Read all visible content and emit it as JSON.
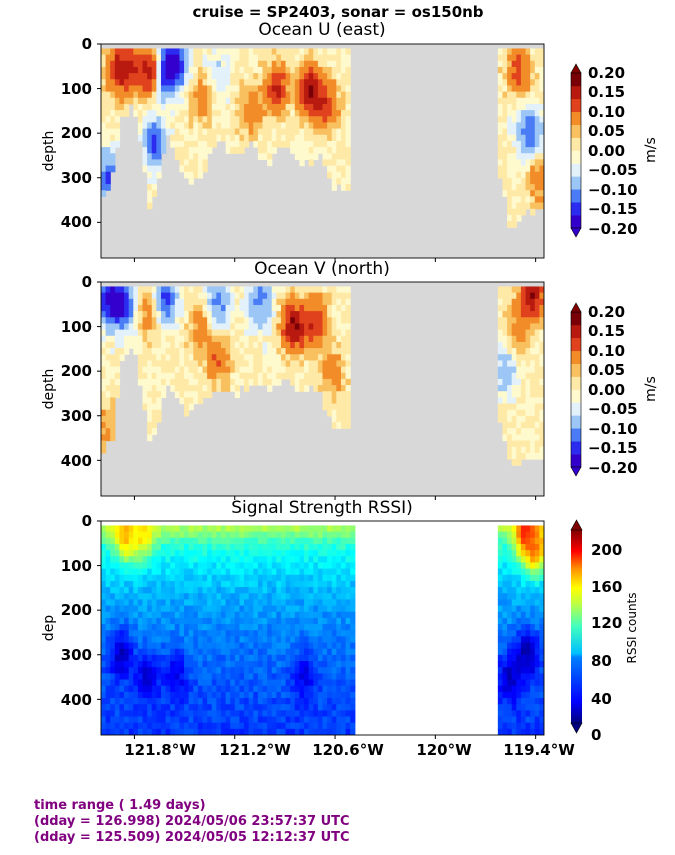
{
  "figure_title": "cruise = SP2403,  sonar = os150nb",
  "footer": {
    "line1": "time range ( 1.49 days)",
    "line2": "(dday = 126.998) 2024/05/06 23:57:37 UTC",
    "line3": "(dday = 125.509) 2024/05/05 12:12:37 UTC"
  },
  "x_ticks": [
    "121.8°W",
    "121.2°W",
    "120.6°W",
    "120°W",
    "119.4°W"
  ],
  "x_tick_values": [
    -121.8,
    -121.2,
    -120.6,
    -120.0,
    -119.4
  ],
  "colors": {
    "nodata_gray": "#d8d8d8",
    "footer_text": "#800080",
    "velocity_levels": [
      "#3300cc",
      "#2c2cf0",
      "#4a7cf5",
      "#9cc6f5",
      "#e3f1fb",
      "#fffacd",
      "#ffe9a6",
      "#f9c060",
      "#f28c28",
      "#e0421e",
      "#b81a10",
      "#7a0008"
    ]
  },
  "chart_data": [
    {
      "type": "heatmap",
      "title": "Ocean U (east)",
      "xlabel": "",
      "ylabel": "depth",
      "xlim": [
        -122.0,
        -119.35
      ],
      "ylim": [
        480,
        0
      ],
      "y_ticks": [
        "0",
        "100",
        "200",
        "300",
        "400"
      ],
      "y_tick_values": [
        0,
        100,
        200,
        300,
        400
      ],
      "colorbar": {
        "label": "m/s",
        "ticks": [
          "0.20",
          "0.15",
          "0.10",
          "0.05",
          "0.00",
          "−0.05",
          "−0.10",
          "−0.15",
          "−0.20"
        ],
        "tick_values": [
          0.2,
          0.15,
          0.1,
          0.05,
          0.0,
          -0.05,
          -0.1,
          -0.15,
          -0.2
        ],
        "range": [
          -0.2,
          0.2
        ]
      },
      "data_segments": [
        {
          "lon_start": -122.0,
          "lon_end": -120.52
        },
        {
          "lon_start": -119.62,
          "lon_end": -119.35
        }
      ],
      "max_depth_profile": {
        "lon": [
          -122.0,
          -121.93,
          -121.88,
          -121.8,
          -121.7,
          -121.6,
          -121.5,
          -121.4,
          -121.3,
          -121.2,
          -121.1,
          -121.0,
          -120.9,
          -120.8,
          -120.7,
          -120.6,
          -120.52,
          -119.62,
          -119.55,
          -119.45,
          -119.35
        ],
        "depth": [
          360,
          300,
          180,
          130,
          380,
          200,
          310,
          300,
          210,
          260,
          220,
          280,
          220,
          280,
          250,
          330,
          330,
          290,
          420,
          380,
          380
        ]
      },
      "features": [
        {
          "lon": -121.62,
          "depth": 60,
          "value": -0.2
        },
        {
          "lon": -121.55,
          "depth": 40,
          "value": -0.18
        },
        {
          "lon": -121.7,
          "depth": 60,
          "value": 0.2
        },
        {
          "lon": -121.9,
          "depth": 60,
          "value": 0.15
        },
        {
          "lon": -121.82,
          "depth": 55,
          "value": 0.12
        },
        {
          "lon": -120.95,
          "depth": 100,
          "value": 0.15
        },
        {
          "lon": -120.75,
          "depth": 100,
          "value": 0.2
        },
        {
          "lon": -120.65,
          "depth": 140,
          "value": 0.12
        },
        {
          "lon": -121.1,
          "depth": 150,
          "value": 0.08
        },
        {
          "lon": -121.4,
          "depth": 120,
          "value": 0.08
        },
        {
          "lon": -121.3,
          "depth": 70,
          "value": -0.05
        },
        {
          "lon": -119.5,
          "depth": 60,
          "value": 0.12
        },
        {
          "lon": -119.44,
          "depth": 200,
          "value": -0.15
        },
        {
          "lon": -119.38,
          "depth": 300,
          "value": 0.08
        },
        {
          "lon": -121.96,
          "depth": 300,
          "value": -0.15
        },
        {
          "lon": -121.68,
          "depth": 220,
          "value": -0.15
        }
      ]
    },
    {
      "type": "heatmap",
      "title": "Ocean V (north)",
      "xlabel": "",
      "ylabel": "depth",
      "xlim": [
        -122.0,
        -119.35
      ],
      "ylim": [
        480,
        0
      ],
      "y_ticks": [
        "0",
        "100",
        "200",
        "300",
        "400"
      ],
      "y_tick_values": [
        0,
        100,
        200,
        300,
        400
      ],
      "colorbar": {
        "label": "m/s",
        "ticks": [
          "0.20",
          "0.15",
          "0.10",
          "0.05",
          "0.00",
          "−0.05",
          "−0.10",
          "−0.15",
          "−0.20"
        ],
        "tick_values": [
          0.2,
          0.15,
          0.1,
          0.05,
          0.0,
          -0.05,
          -0.1,
          -0.15,
          -0.2
        ],
        "range": [
          -0.2,
          0.2
        ]
      },
      "data_segments": [
        {
          "lon_start": -122.0,
          "lon_end": -120.52
        },
        {
          "lon_start": -119.62,
          "lon_end": -119.35
        }
      ],
      "max_depth_profile": {
        "lon": [
          -122.0,
          -121.93,
          -121.88,
          -121.8,
          -121.7,
          -121.6,
          -121.5,
          -121.4,
          -121.3,
          -121.2,
          -121.1,
          -121.0,
          -120.9,
          -120.8,
          -120.7,
          -120.6,
          -120.52,
          -119.62,
          -119.55,
          -119.45,
          -119.35
        ],
        "depth": [
          380,
          360,
          180,
          150,
          380,
          220,
          300,
          280,
          240,
          250,
          230,
          240,
          230,
          240,
          240,
          330,
          330,
          290,
          420,
          400,
          400
        ]
      },
      "features": [
        {
          "lon": -121.95,
          "depth": 40,
          "value": -0.2
        },
        {
          "lon": -121.87,
          "depth": 50,
          "value": -0.18
        },
        {
          "lon": -121.62,
          "depth": 40,
          "value": -0.18
        },
        {
          "lon": -121.3,
          "depth": 50,
          "value": -0.12
        },
        {
          "lon": -121.05,
          "depth": 40,
          "value": -0.12
        },
        {
          "lon": -120.85,
          "depth": 100,
          "value": 0.2
        },
        {
          "lon": -120.72,
          "depth": 90,
          "value": 0.15
        },
        {
          "lon": -120.62,
          "depth": 200,
          "value": 0.08
        },
        {
          "lon": -121.3,
          "depth": 170,
          "value": 0.1
        },
        {
          "lon": -121.4,
          "depth": 100,
          "value": 0.08
        },
        {
          "lon": -121.7,
          "depth": 60,
          "value": 0.1
        },
        {
          "lon": -119.42,
          "depth": 30,
          "value": 0.2
        },
        {
          "lon": -119.5,
          "depth": 110,
          "value": 0.08
        },
        {
          "lon": -119.58,
          "depth": 200,
          "value": -0.08
        },
        {
          "lon": -121.96,
          "depth": 330,
          "value": 0.06
        }
      ]
    },
    {
      "type": "heatmap",
      "title": "Signal Strength RSSI)",
      "xlabel": "",
      "ylabel": "dep",
      "xlim": [
        -122.0,
        -119.35
      ],
      "ylim": [
        480,
        0
      ],
      "y_ticks": [
        "0",
        "100",
        "200",
        "300",
        "400"
      ],
      "y_tick_values": [
        0,
        100,
        200,
        300,
        400
      ],
      "colorbar": {
        "label": "RSSI counts",
        "ticks": [
          "200",
          "160",
          "120",
          "80",
          "40",
          "0"
        ],
        "tick_values": [
          200,
          160,
          120,
          80,
          40,
          0
        ],
        "range": [
          0,
          225
        ]
      },
      "data_segments": [
        {
          "lon_start": -122.0,
          "lon_end": -120.47
        },
        {
          "lon_start": -119.62,
          "lon_end": -119.35
        }
      ],
      "profile": {
        "depth": [
          20,
          50,
          100,
          150,
          200,
          300,
          400,
          475
        ],
        "rssi": [
          120,
          95,
          80,
          70,
          62,
          52,
          45,
          40
        ]
      },
      "features": [
        {
          "lon": -121.85,
          "depth": 30,
          "value": 160
        },
        {
          "lon": -121.75,
          "depth": 25,
          "value": 150
        },
        {
          "lon": -119.45,
          "depth": 30,
          "value": 200
        },
        {
          "lon": -119.4,
          "depth": 60,
          "value": 170
        },
        {
          "lon": -121.88,
          "depth": 300,
          "value": 15
        },
        {
          "lon": -121.72,
          "depth": 350,
          "value": 20
        },
        {
          "lon": -121.55,
          "depth": 350,
          "value": 25
        },
        {
          "lon": -120.78,
          "depth": 350,
          "value": 25
        },
        {
          "lon": -119.55,
          "depth": 350,
          "value": 15
        },
        {
          "lon": -119.45,
          "depth": 300,
          "value": 10
        }
      ]
    }
  ]
}
